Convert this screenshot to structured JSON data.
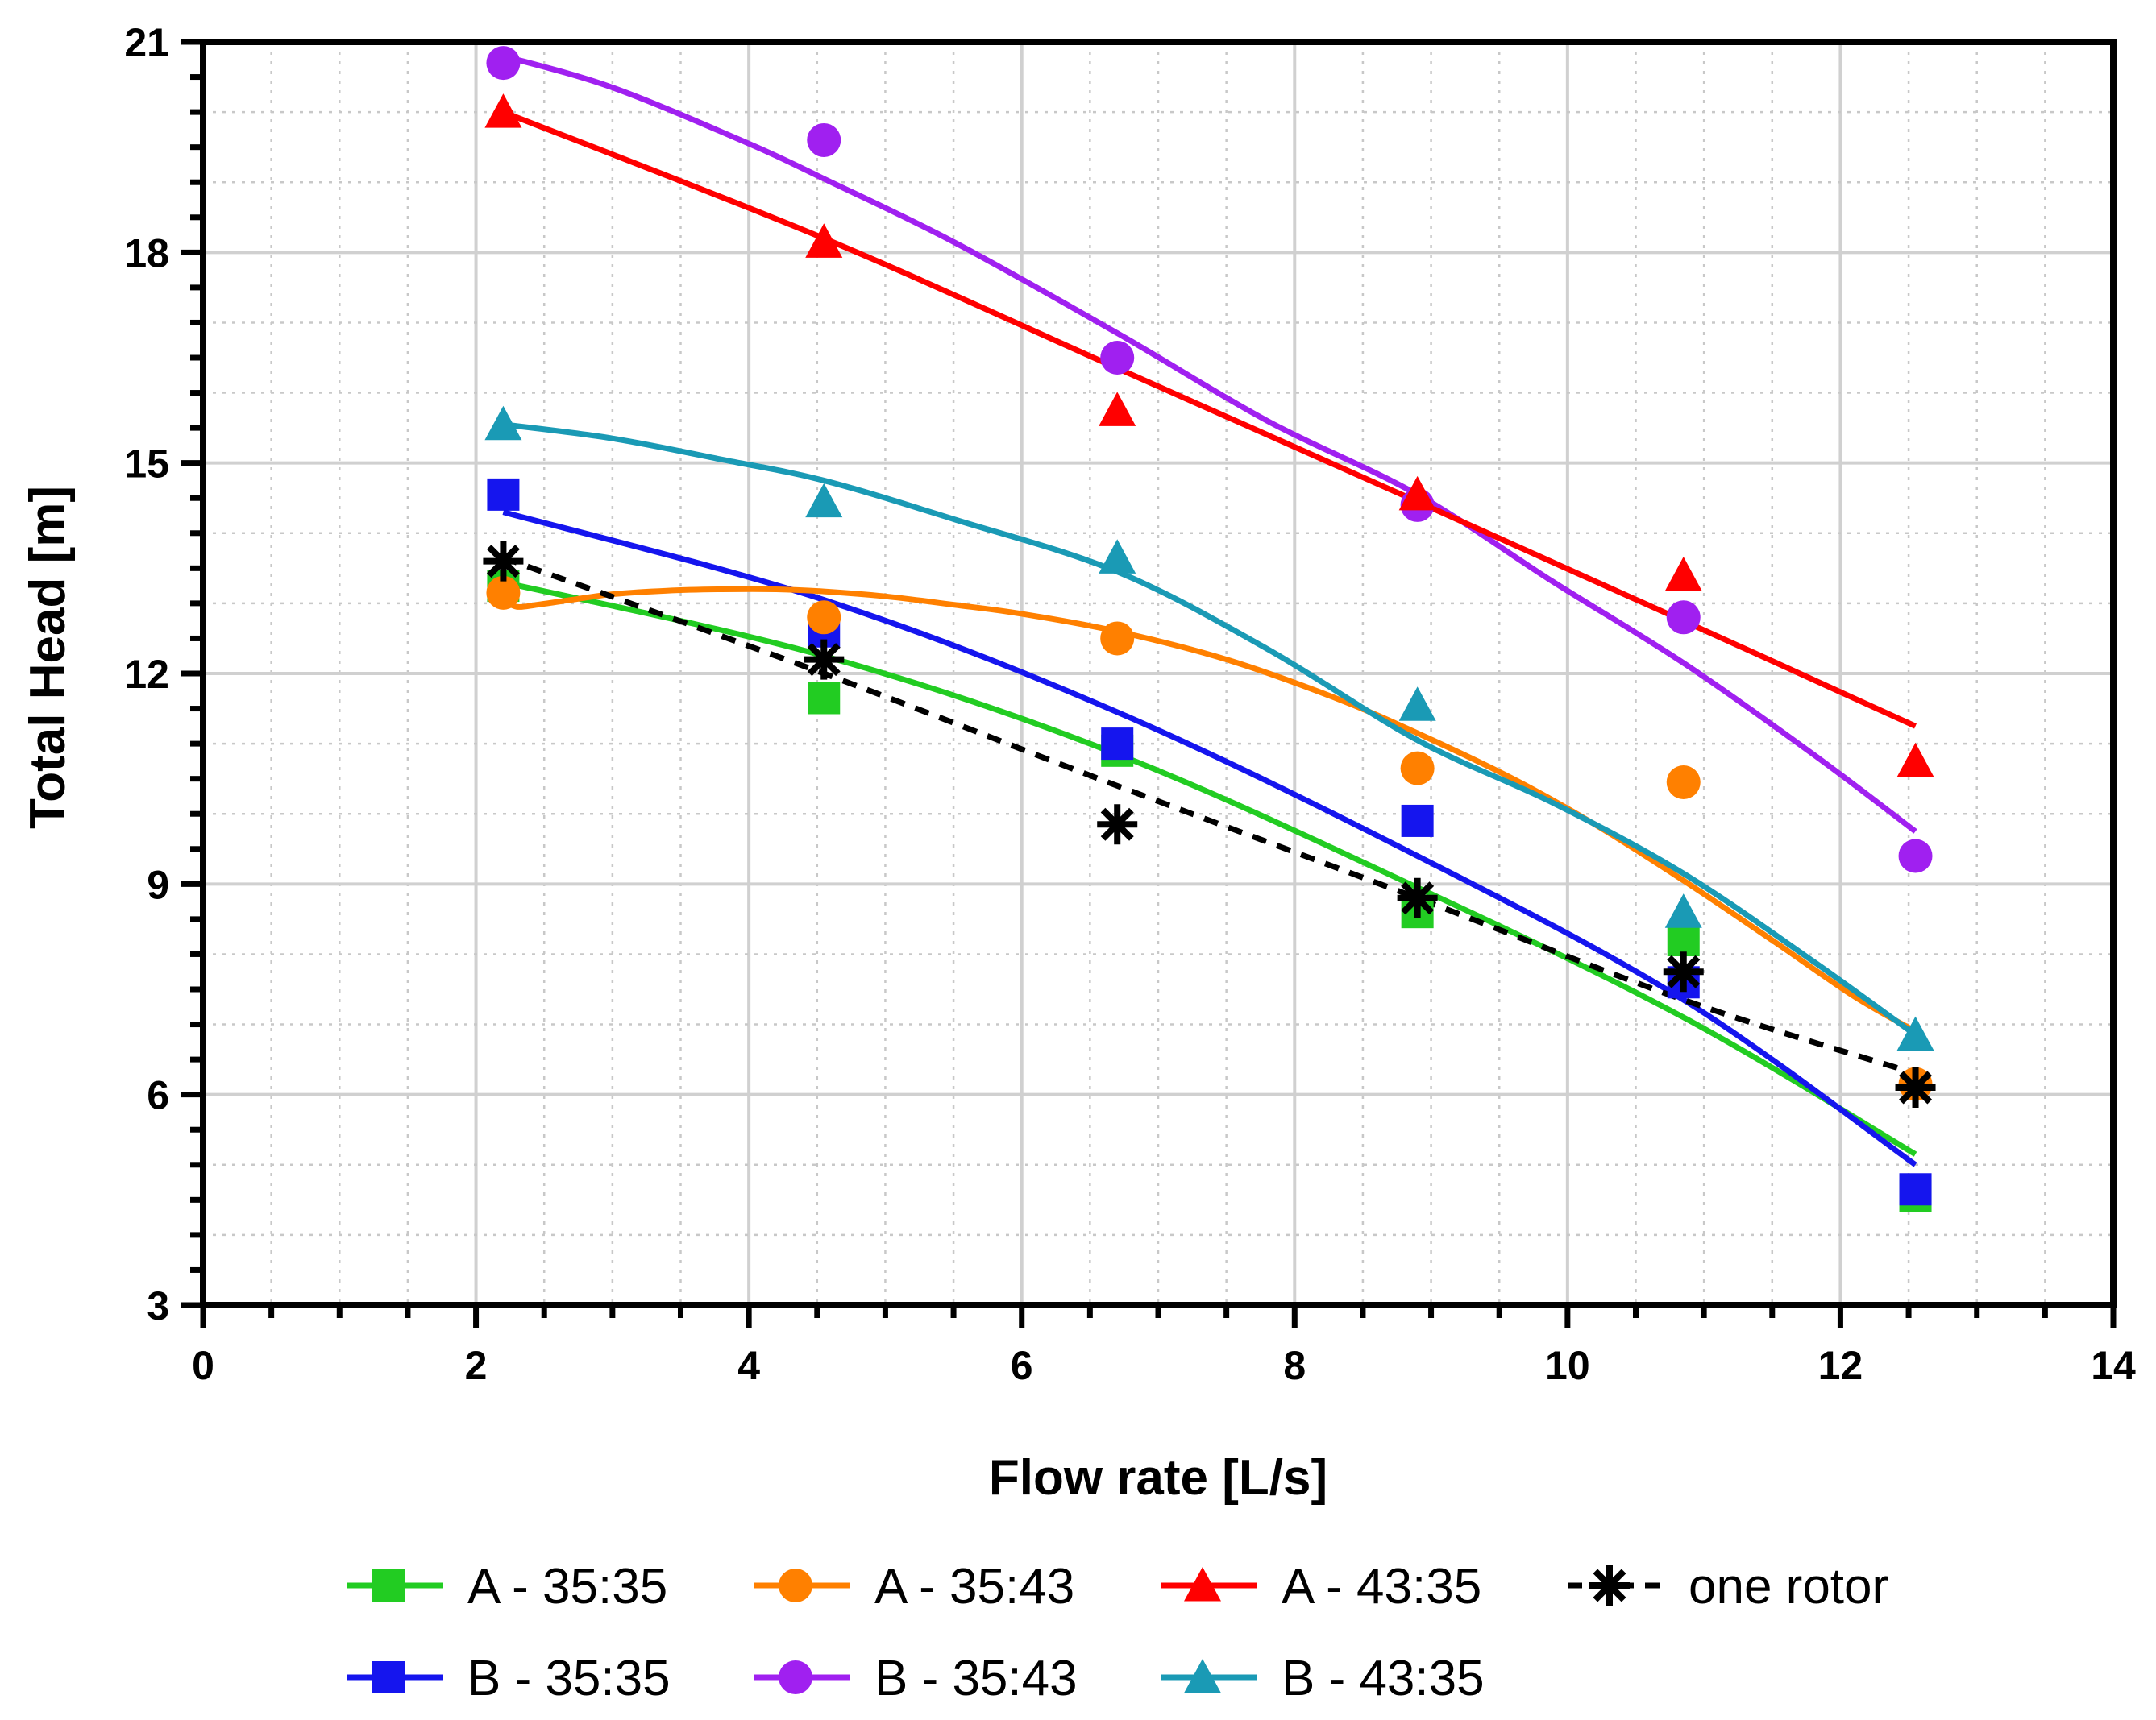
{
  "chart_data": {
    "type": "scatter",
    "title": "",
    "xlabel": "Flow rate [L/s]",
    "ylabel": "Total Head [m]",
    "xlim": [
      0,
      14
    ],
    "ylim": [
      3,
      21
    ],
    "xticks": [
      "0",
      "2",
      "4",
      "6",
      "8",
      "10",
      "12",
      "14"
    ],
    "yticks": [
      "3",
      "6",
      "9",
      "12",
      "15",
      "18",
      "21"
    ],
    "grid": true,
    "legend_position": "bottom",
    "series": [
      {
        "name": "A - 35:35",
        "color": "#22cc22",
        "marker": "square",
        "line_style": "solid",
        "x": [
          2.2,
          4.55,
          6.7,
          8.9,
          10.85,
          12.55
        ],
        "y": [
          13.25,
          11.65,
          10.9,
          8.6,
          8.2,
          4.55
        ],
        "fit_x": [
          2.2,
          4.55,
          6.7,
          8.9,
          10.85,
          12.55
        ],
        "fit_y": [
          13.3,
          12.25,
          10.85,
          8.95,
          7.1,
          5.15
        ]
      },
      {
        "name": "B - 35:35",
        "color": "#1515ee",
        "marker": "square",
        "line_style": "solid",
        "x": [
          2.2,
          4.55,
          6.7,
          8.9,
          10.85,
          12.55
        ],
        "y": [
          14.55,
          12.6,
          11.0,
          9.9,
          7.6,
          4.65
        ],
        "fit_x": [
          2.2,
          4.55,
          6.7,
          8.9,
          10.85,
          12.55
        ],
        "fit_y": [
          14.3,
          13.05,
          11.45,
          9.4,
          7.35,
          5.0
        ]
      },
      {
        "name": "A - 35:43",
        "color": "#ff8000",
        "marker": "circle",
        "line_style": "solid",
        "x": [
          2.2,
          4.55,
          6.7,
          8.9,
          10.85,
          12.55
        ],
        "y": [
          13.15,
          12.8,
          12.5,
          10.65,
          10.45,
          6.15
        ],
        "fit_x": [
          2.2,
          2.3,
          2.45,
          2.7,
          3.0,
          3.4,
          3.8,
          4.2,
          4.55,
          5.0,
          5.5,
          6.0,
          6.7,
          7.5,
          8.3,
          8.9,
          9.6,
          10.2,
          10.85,
          11.5,
          12.1,
          12.55
        ],
        "fit_y": [
          13.05,
          12.95,
          12.98,
          13.05,
          13.13,
          13.18,
          13.2,
          13.2,
          13.17,
          13.1,
          12.98,
          12.85,
          12.6,
          12.2,
          11.65,
          11.15,
          10.5,
          9.85,
          9.05,
          8.2,
          7.4,
          6.9
        ]
      },
      {
        "name": "B - 35:43",
        "color": "#a020f0",
        "marker": "circle",
        "line_style": "solid",
        "x": [
          2.2,
          4.55,
          6.7,
          8.9,
          10.85,
          12.55
        ],
        "y": [
          20.7,
          19.6,
          16.5,
          14.4,
          12.8,
          9.4
        ],
        "fit_x": [
          2.2,
          3.0,
          4.0,
          4.55,
          5.5,
          6.7,
          7.8,
          8.9,
          9.9,
          10.85,
          11.8,
          12.55
        ],
        "fit_y": [
          20.8,
          20.35,
          19.55,
          19.05,
          18.15,
          16.85,
          15.6,
          14.55,
          13.3,
          12.15,
          10.85,
          9.75
        ]
      },
      {
        "name": "A - 43:35",
        "color": "#ff0000",
        "marker": "triangle",
        "line_style": "solid",
        "x": [
          2.2,
          4.55,
          6.7,
          8.9,
          10.85,
          12.55
        ],
        "y": [
          20.0,
          18.15,
          15.75,
          14.55,
          13.4,
          10.75
        ],
        "fit_x": [
          2.2,
          4.55,
          6.7,
          8.9,
          10.85,
          12.55
        ],
        "fit_y": [
          20.0,
          18.2,
          16.35,
          14.45,
          12.75,
          11.25
        ]
      },
      {
        "name": "B - 43:35",
        "color": "#1a9ab5",
        "marker": "triangle",
        "line_style": "solid",
        "x": [
          2.2,
          4.55,
          6.7,
          8.9,
          10.85,
          12.55
        ],
        "y": [
          15.55,
          14.45,
          13.65,
          11.55,
          8.6,
          6.85
        ],
        "fit_x": [
          2.2,
          3.0,
          3.8,
          4.55,
          5.5,
          6.7,
          7.8,
          8.9,
          9.9,
          10.85,
          11.8,
          12.55
        ],
        "fit_y": [
          15.55,
          15.35,
          15.05,
          14.75,
          14.2,
          13.45,
          12.35,
          11.05,
          10.15,
          9.15,
          7.9,
          6.85
        ]
      },
      {
        "name": "one rotor",
        "color": "#000000",
        "marker": "asterisk",
        "line_style": "dashed",
        "x": [
          2.2,
          4.55,
          6.7,
          8.9,
          10.85,
          12.55
        ],
        "y": [
          13.6,
          12.2,
          9.85,
          8.8,
          7.75,
          6.1
        ],
        "fit_x": [
          2.2,
          4.55,
          6.7,
          8.9,
          10.85,
          12.55
        ],
        "fit_y": [
          13.65,
          12.0,
          10.4,
          8.8,
          7.35,
          6.3
        ]
      }
    ],
    "legend_order": [
      0,
      2,
      4,
      6,
      1,
      3,
      5
    ]
  }
}
